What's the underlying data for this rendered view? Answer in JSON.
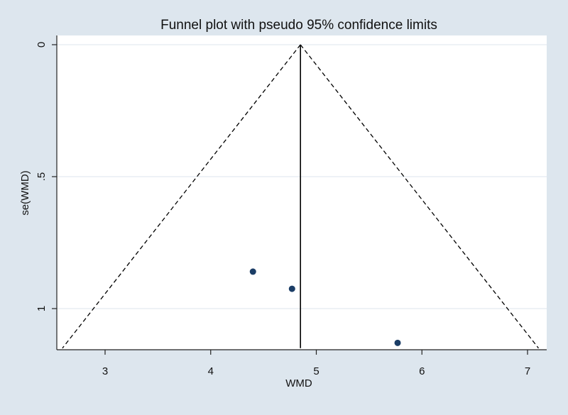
{
  "chart_data": {
    "type": "scatter",
    "title": "Funnel plot with pseudo 95% confidence limits",
    "xlabel": "WMD",
    "ylabel": "se(WMD)",
    "xlim": [
      2.6,
      7.15
    ],
    "ylim": [
      0,
      1.15
    ],
    "y_reversed": true,
    "xticks": [
      3,
      4,
      5,
      6,
      7
    ],
    "yticks": [
      0,
      0.5,
      1
    ],
    "ytick_labels": [
      "0",
      ".5",
      "1"
    ],
    "grid": true,
    "pooled_estimate": 4.85,
    "confidence_limit_z": 1.96,
    "points": [
      {
        "x": 4.4,
        "y": 0.86
      },
      {
        "x": 4.77,
        "y": 0.925
      },
      {
        "x": 5.77,
        "y": 1.13
      }
    ],
    "colors": {
      "background": "#dde6ee",
      "plot_background": "#ffffff",
      "point": "#1b3d66",
      "line": "#000000"
    }
  }
}
